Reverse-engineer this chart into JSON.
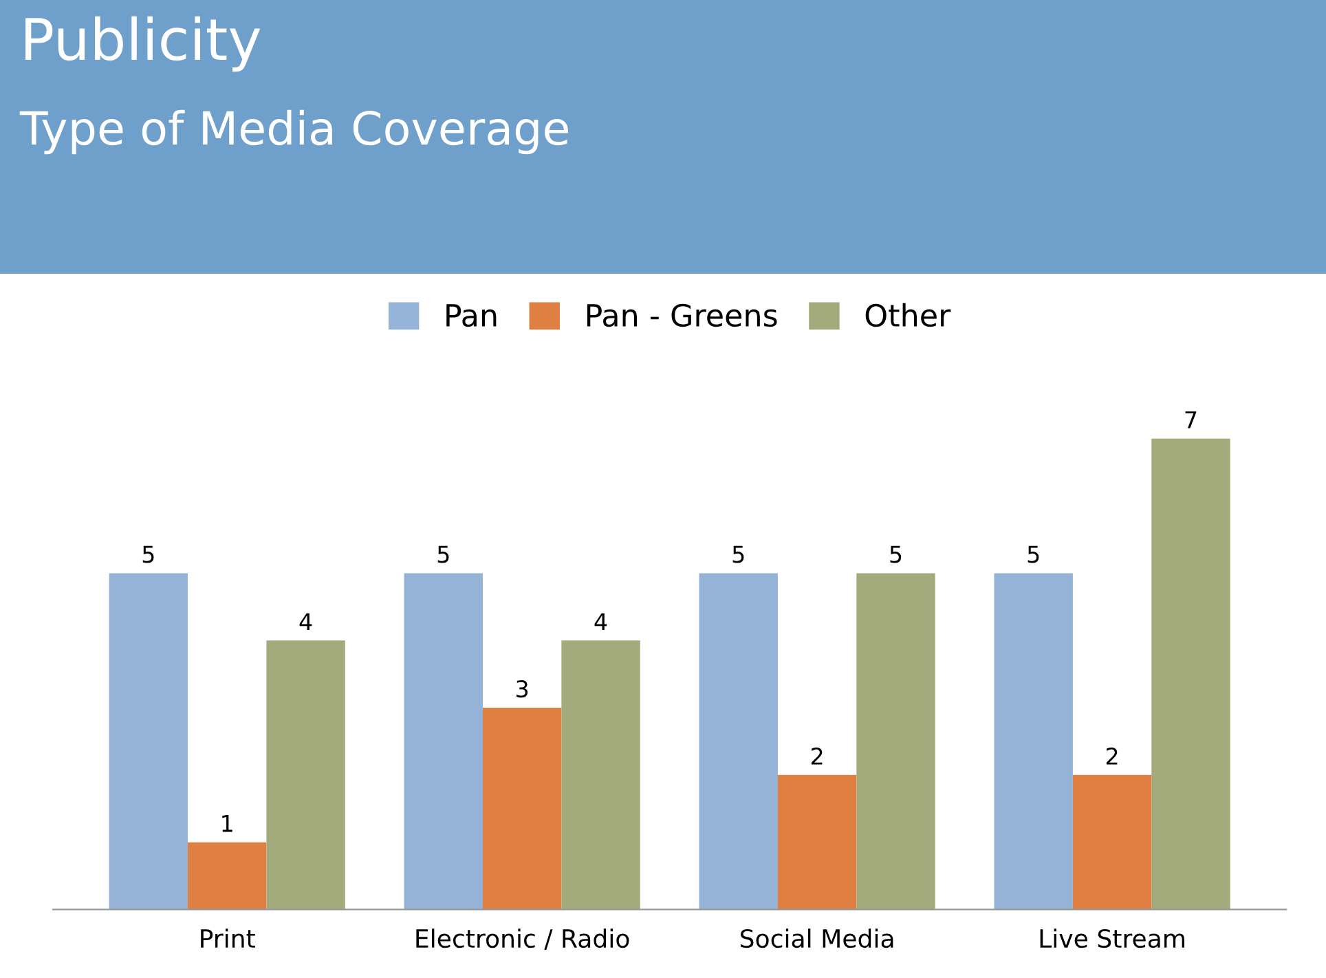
{
  "chart_data": {
    "type": "bar",
    "title": "Publicity",
    "subtitle": "Type of Media Coverage",
    "categories": [
      "Print",
      "Electronic / Radio",
      "Social Media",
      "Live Stream"
    ],
    "series": [
      {
        "name": "Pan",
        "color": "#95b3d7",
        "values": [
          5,
          5,
          5,
          5
        ]
      },
      {
        "name": "Pan - Greens",
        "color": "#e07f42",
        "values": [
          1,
          3,
          2,
          2
        ]
      },
      {
        "name": "Other",
        "color": "#a3ab7c",
        "values": [
          4,
          4,
          5,
          7
        ]
      }
    ],
    "data_labels": true,
    "legend": "top",
    "grid": false
  }
}
